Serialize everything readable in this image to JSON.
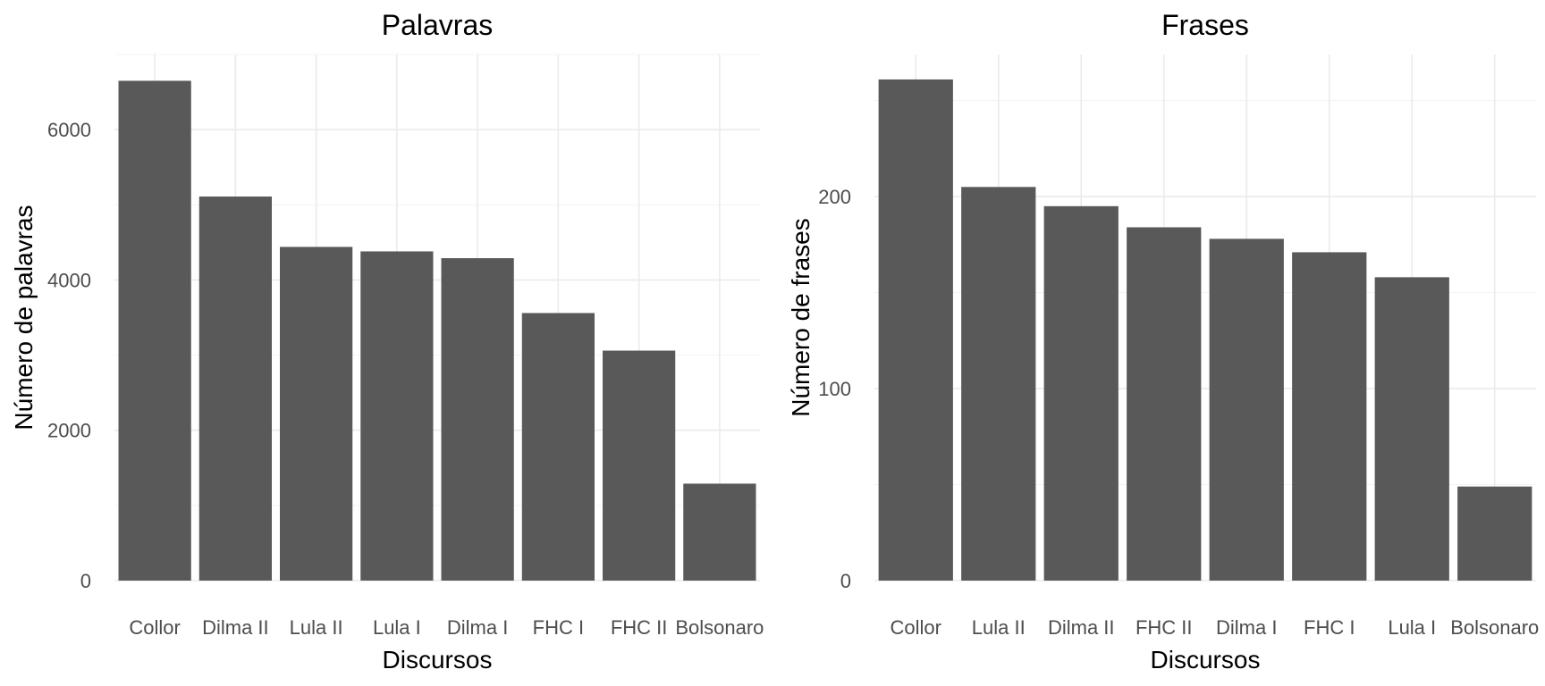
{
  "chart_data": [
    {
      "type": "bar",
      "title": "Palavras",
      "xlabel": "Discursos",
      "ylabel": "Número de palavras",
      "categories": [
        "Collor",
        "Dilma II",
        "Lula II",
        "Lula I",
        "Dilma I",
        "FHC I",
        "FHC II",
        "Bolsonaro"
      ],
      "values": [
        6650,
        5110,
        4440,
        4380,
        4290,
        3560,
        3060,
        1290
      ],
      "ylim": [
        0,
        7000
      ],
      "yticks": [
        0,
        2000,
        4000,
        6000
      ],
      "ytick_labels": [
        "0",
        "2000",
        "4000",
        "6000"
      ],
      "grid": true,
      "bar_color": "#595959"
    },
    {
      "type": "bar",
      "title": "Frases",
      "xlabel": "Discursos",
      "ylabel": "Número de frases",
      "categories": [
        "Collor",
        "Lula II",
        "Dilma II",
        "FHC II",
        "Dilma I",
        "FHC I",
        "Lula I",
        "Bolsonaro"
      ],
      "values": [
        261,
        205,
        195,
        184,
        178,
        171,
        158,
        49
      ],
      "ylim": [
        0,
        274
      ],
      "yticks": [
        0,
        100,
        200
      ],
      "ytick_labels": [
        "0",
        "100",
        "200"
      ],
      "grid": true,
      "bar_color": "#595959"
    }
  ]
}
